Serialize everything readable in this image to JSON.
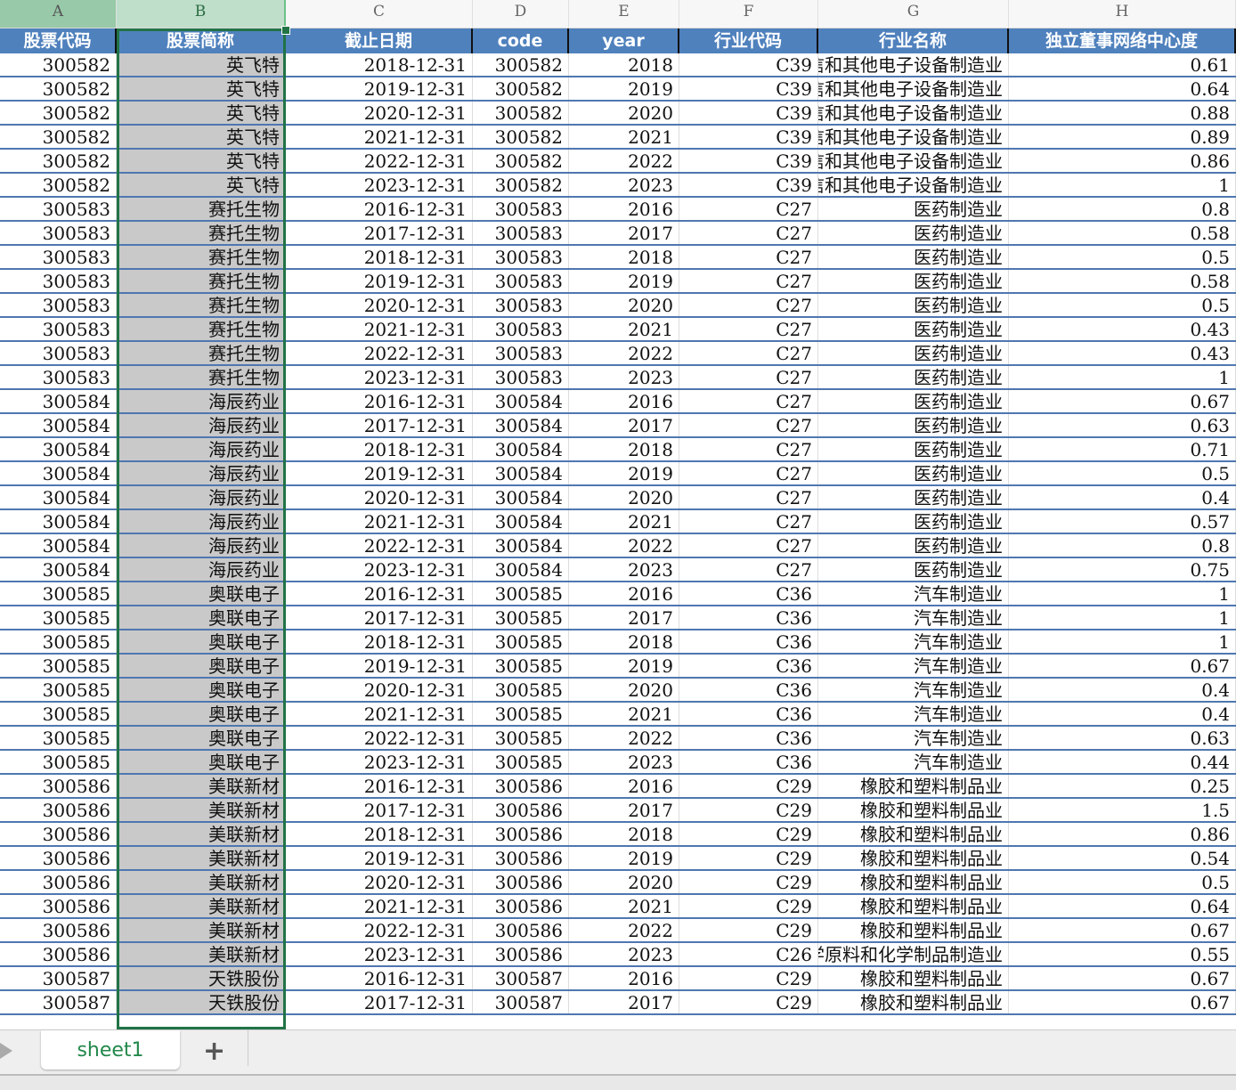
{
  "columns": [
    "A",
    "B",
    "C",
    "D",
    "E",
    "F",
    "G",
    "H"
  ],
  "headers": [
    "股票代码",
    "股票简称",
    "截止日期",
    "code",
    "year",
    "行业代码",
    "行业名称",
    "独立董事网络中心度"
  ],
  "rows": [
    [
      "300582",
      "英飞特",
      "2018-12-31",
      "300582",
      "2018",
      "C39",
      "计算机、通信和其他电子设备制造业",
      "0.61"
    ],
    [
      "300582",
      "英飞特",
      "2019-12-31",
      "300582",
      "2019",
      "C39",
      "计算机、通信和其他电子设备制造业",
      "0.64"
    ],
    [
      "300582",
      "英飞特",
      "2020-12-31",
      "300582",
      "2020",
      "C39",
      "计算机、通信和其他电子设备制造业",
      "0.88"
    ],
    [
      "300582",
      "英飞特",
      "2021-12-31",
      "300582",
      "2021",
      "C39",
      "计算机、通信和其他电子设备制造业",
      "0.89"
    ],
    [
      "300582",
      "英飞特",
      "2022-12-31",
      "300582",
      "2022",
      "C39",
      "计算机、通信和其他电子设备制造业",
      "0.86"
    ],
    [
      "300582",
      "英飞特",
      "2023-12-31",
      "300582",
      "2023",
      "C39",
      "计算机、通信和其他电子设备制造业",
      "1"
    ],
    [
      "300583",
      "赛托生物",
      "2016-12-31",
      "300583",
      "2016",
      "C27",
      "医药制造业",
      "0.8"
    ],
    [
      "300583",
      "赛托生物",
      "2017-12-31",
      "300583",
      "2017",
      "C27",
      "医药制造业",
      "0.58"
    ],
    [
      "300583",
      "赛托生物",
      "2018-12-31",
      "300583",
      "2018",
      "C27",
      "医药制造业",
      "0.5"
    ],
    [
      "300583",
      "赛托生物",
      "2019-12-31",
      "300583",
      "2019",
      "C27",
      "医药制造业",
      "0.58"
    ],
    [
      "300583",
      "赛托生物",
      "2020-12-31",
      "300583",
      "2020",
      "C27",
      "医药制造业",
      "0.5"
    ],
    [
      "300583",
      "赛托生物",
      "2021-12-31",
      "300583",
      "2021",
      "C27",
      "医药制造业",
      "0.43"
    ],
    [
      "300583",
      "赛托生物",
      "2022-12-31",
      "300583",
      "2022",
      "C27",
      "医药制造业",
      "0.43"
    ],
    [
      "300583",
      "赛托生物",
      "2023-12-31",
      "300583",
      "2023",
      "C27",
      "医药制造业",
      "1"
    ],
    [
      "300584",
      "海辰药业",
      "2016-12-31",
      "300584",
      "2016",
      "C27",
      "医药制造业",
      "0.67"
    ],
    [
      "300584",
      "海辰药业",
      "2017-12-31",
      "300584",
      "2017",
      "C27",
      "医药制造业",
      "0.63"
    ],
    [
      "300584",
      "海辰药业",
      "2018-12-31",
      "300584",
      "2018",
      "C27",
      "医药制造业",
      "0.71"
    ],
    [
      "300584",
      "海辰药业",
      "2019-12-31",
      "300584",
      "2019",
      "C27",
      "医药制造业",
      "0.5"
    ],
    [
      "300584",
      "海辰药业",
      "2020-12-31",
      "300584",
      "2020",
      "C27",
      "医药制造业",
      "0.4"
    ],
    [
      "300584",
      "海辰药业",
      "2021-12-31",
      "300584",
      "2021",
      "C27",
      "医药制造业",
      "0.57"
    ],
    [
      "300584",
      "海辰药业",
      "2022-12-31",
      "300584",
      "2022",
      "C27",
      "医药制造业",
      "0.8"
    ],
    [
      "300584",
      "海辰药业",
      "2023-12-31",
      "300584",
      "2023",
      "C27",
      "医药制造业",
      "0.75"
    ],
    [
      "300585",
      "奥联电子",
      "2016-12-31",
      "300585",
      "2016",
      "C36",
      "汽车制造业",
      "1"
    ],
    [
      "300585",
      "奥联电子",
      "2017-12-31",
      "300585",
      "2017",
      "C36",
      "汽车制造业",
      "1"
    ],
    [
      "300585",
      "奥联电子",
      "2018-12-31",
      "300585",
      "2018",
      "C36",
      "汽车制造业",
      "1"
    ],
    [
      "300585",
      "奥联电子",
      "2019-12-31",
      "300585",
      "2019",
      "C36",
      "汽车制造业",
      "0.67"
    ],
    [
      "300585",
      "奥联电子",
      "2020-12-31",
      "300585",
      "2020",
      "C36",
      "汽车制造业",
      "0.4"
    ],
    [
      "300585",
      "奥联电子",
      "2021-12-31",
      "300585",
      "2021",
      "C36",
      "汽车制造业",
      "0.4"
    ],
    [
      "300585",
      "奥联电子",
      "2022-12-31",
      "300585",
      "2022",
      "C36",
      "汽车制造业",
      "0.63"
    ],
    [
      "300585",
      "奥联电子",
      "2023-12-31",
      "300585",
      "2023",
      "C36",
      "汽车制造业",
      "0.44"
    ],
    [
      "300586",
      "美联新材",
      "2016-12-31",
      "300586",
      "2016",
      "C29",
      "橡胶和塑料制品业",
      "0.25"
    ],
    [
      "300586",
      "美联新材",
      "2017-12-31",
      "300586",
      "2017",
      "C29",
      "橡胶和塑料制品业",
      "1.5"
    ],
    [
      "300586",
      "美联新材",
      "2018-12-31",
      "300586",
      "2018",
      "C29",
      "橡胶和塑料制品业",
      "0.86"
    ],
    [
      "300586",
      "美联新材",
      "2019-12-31",
      "300586",
      "2019",
      "C29",
      "橡胶和塑料制品业",
      "0.54"
    ],
    [
      "300586",
      "美联新材",
      "2020-12-31",
      "300586",
      "2020",
      "C29",
      "橡胶和塑料制品业",
      "0.5"
    ],
    [
      "300586",
      "美联新材",
      "2021-12-31",
      "300586",
      "2021",
      "C29",
      "橡胶和塑料制品业",
      "0.64"
    ],
    [
      "300586",
      "美联新材",
      "2022-12-31",
      "300586",
      "2022",
      "C29",
      "橡胶和塑料制品业",
      "0.67"
    ],
    [
      "300586",
      "美联新材",
      "2023-12-31",
      "300586",
      "2023",
      "C26",
      "化学原料和化学制品制造业",
      "0.55"
    ],
    [
      "300587",
      "天铁股份",
      "2016-12-31",
      "300587",
      "2016",
      "C29",
      "橡胶和塑料制品业",
      "0.67"
    ],
    [
      "300587",
      "天铁股份",
      "2017-12-31",
      "300587",
      "2017",
      "C29",
      "橡胶和塑料制品业",
      "0.67"
    ]
  ],
  "sheet_tab": "sheet1",
  "add_sheet": "+",
  "colors": {
    "header": "#4f81bd",
    "selection": "#217346",
    "selected_column": "#c9c9c9"
  }
}
